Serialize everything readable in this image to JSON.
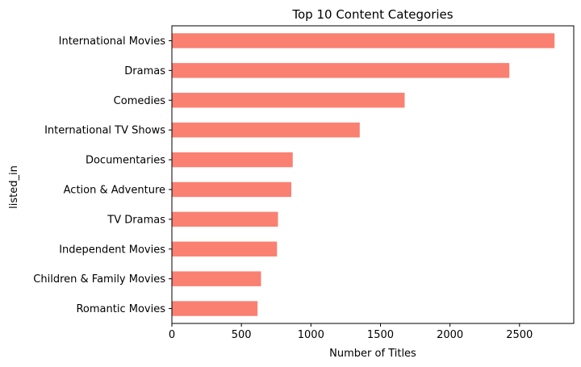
{
  "chart_data": {
    "type": "bar",
    "orientation": "horizontal",
    "title": "Top 10 Content Categories",
    "xlabel": "Number of Titles",
    "ylabel": "listed_in",
    "categories": [
      "International Movies",
      "Dramas",
      "Comedies",
      "International TV Shows",
      "Documentaries",
      "Action & Adventure",
      "TV Dramas",
      "Independent Movies",
      "Children & Family Movies",
      "Romantic Movies"
    ],
    "values": [
      2752,
      2427,
      1674,
      1351,
      869,
      859,
      763,
      756,
      641,
      616
    ],
    "xlim": [
      0,
      2890
    ],
    "xticks": [
      0,
      500,
      1000,
      1500,
      2000,
      2500
    ],
    "bar_color": "#fa8072",
    "grid": false
  }
}
